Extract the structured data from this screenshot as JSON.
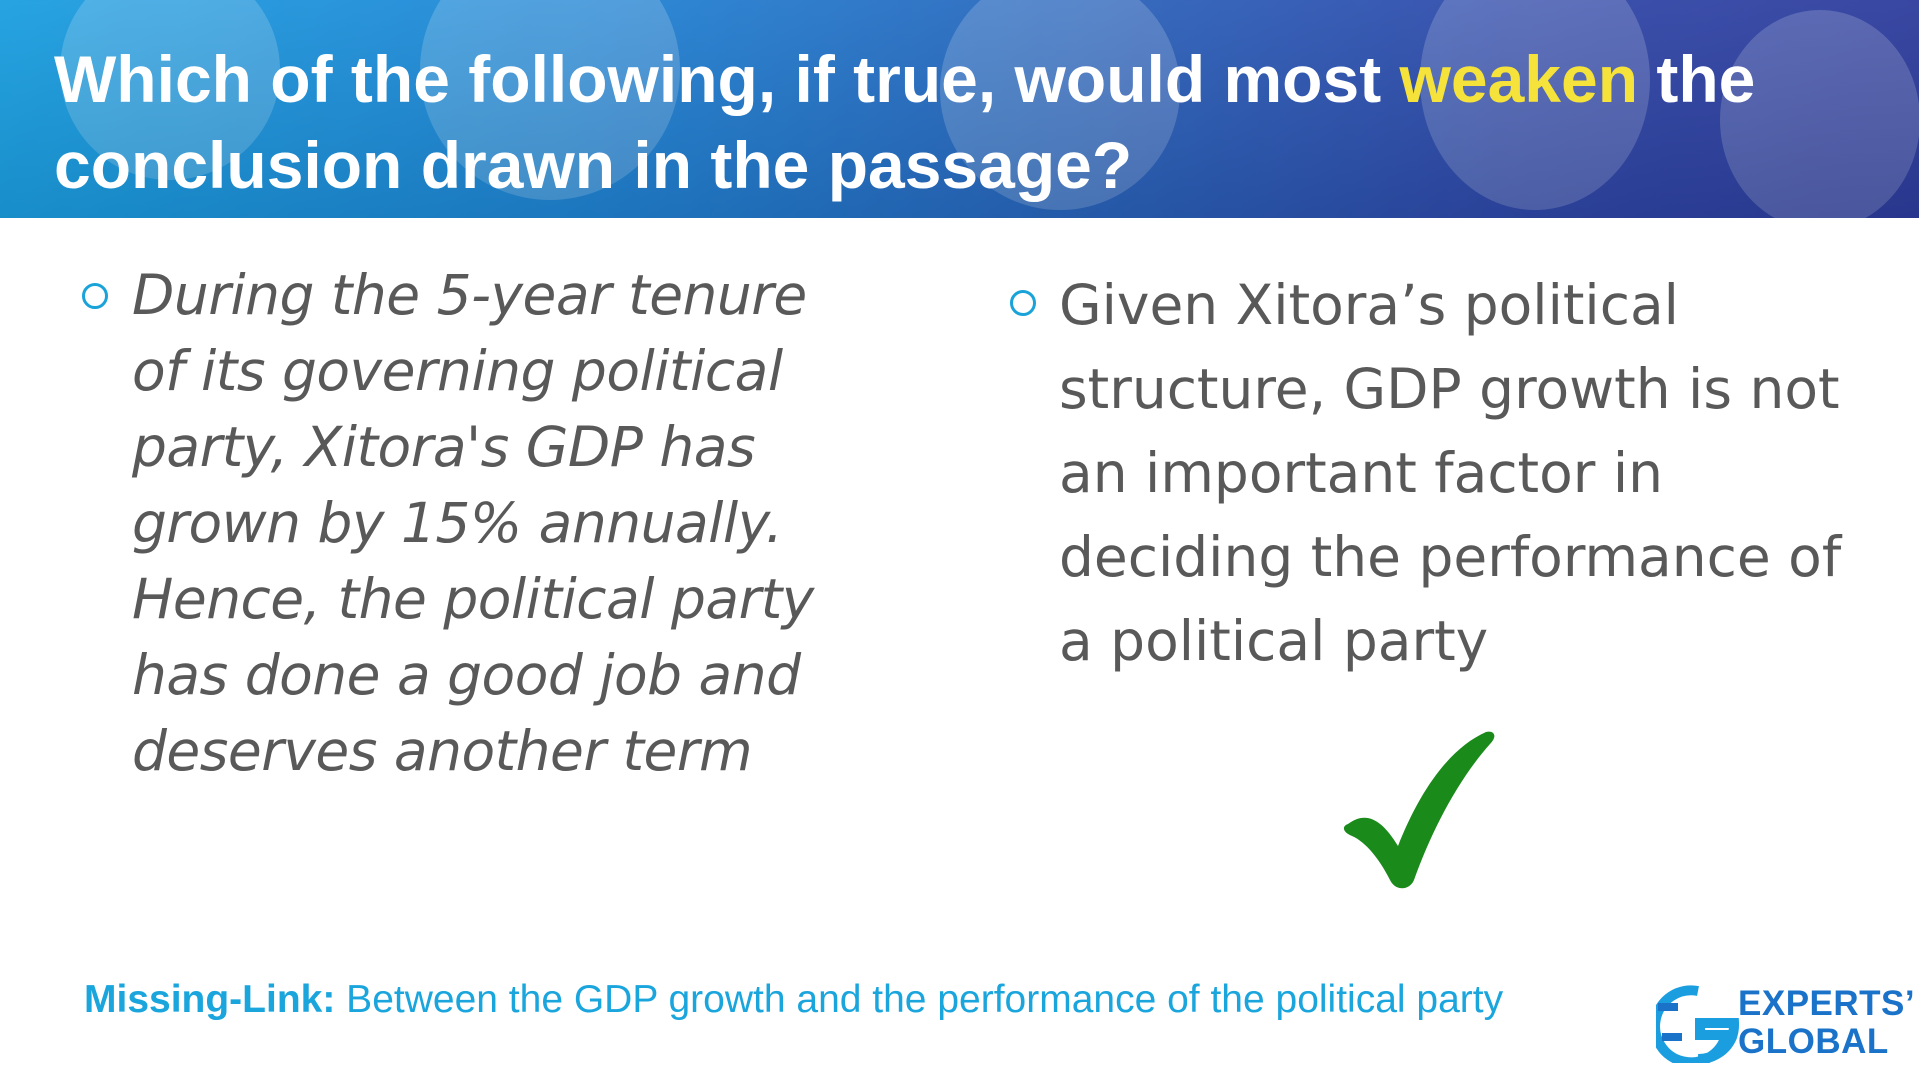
{
  "question": {
    "part1": "Which of the following, if true, would most ",
    "highlight": "weaken",
    "part2": " the conclusion drawn in the passage?"
  },
  "options": [
    {
      "text": "During the 5-year tenure of its governing political party, Xitora's GDP has grown by 15% annually. Hence, the political party has done a good job and deserves another term"
    },
    {
      "text": "Given Xitora’s political structure, GDP growth is not an important factor in deciding the performance of a political party"
    }
  ],
  "correct_mark": "✔",
  "footer": {
    "label": "Missing-Link:",
    "text": " Between the GDP growth and the performance of the political party"
  },
  "logo": {
    "line1": "EXPERTS’",
    "line2": "GLOBAL"
  },
  "colors": {
    "header_gradient_start": "#1a9ee0",
    "header_gradient_end": "#2d3c9c",
    "highlight": "#f5e23a",
    "accent": "#1aa5dd",
    "check": "#1a8a1a",
    "body_text": "#595959"
  }
}
